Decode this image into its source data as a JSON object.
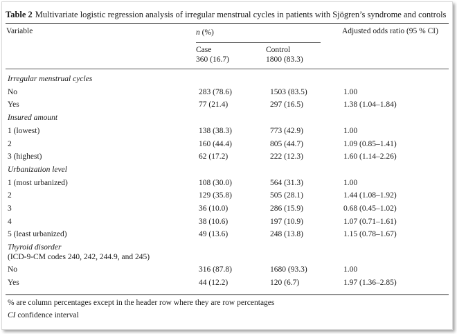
{
  "table": {
    "label": "Table 2",
    "caption": "Multivariate logistic regression analysis of irregular menstrual cycles in patients with Sjögren’s syndrome and controls",
    "headers": {
      "variable": "Variable",
      "n_pct": "n (%)",
      "or": "Adjusted odds ratio (95 % CI)",
      "case_label": "Case",
      "case_n": "360 (16.7)",
      "control_label": "Control",
      "control_n": "1800 (83.3)"
    },
    "rows": [
      {
        "type": "section",
        "label": "Irregular menstrual cycles"
      },
      {
        "type": "data",
        "label": "No",
        "case": "283 (78.6)",
        "control": "1503 (83.5)",
        "or": "1.00"
      },
      {
        "type": "data",
        "label": "Yes",
        "case": "77 (21.4)",
        "control": "297 (16.5)",
        "or": "1.38 (1.04–1.84)"
      },
      {
        "type": "section",
        "label": "Insured amount"
      },
      {
        "type": "data",
        "label": "1 (lowest)",
        "case": "138 (38.3)",
        "control": "773 (42.9)",
        "or": "1.00"
      },
      {
        "type": "data",
        "label": "2",
        "case": "160 (44.4)",
        "control": "805 (44.7)",
        "or": "1.09 (0.85–1.41)"
      },
      {
        "type": "data",
        "label": "3 (highest)",
        "case": "62 (17.2)",
        "control": "222 (12.3)",
        "or": "1.60 (1.14–2.26)"
      },
      {
        "type": "section",
        "label": "Urbanization level"
      },
      {
        "type": "data",
        "label": "1 (most urbanized)",
        "case": "108 (30.0)",
        "control": "564 (31.3)",
        "or": "1.00"
      },
      {
        "type": "data",
        "label": "2",
        "case": "129 (35.8)",
        "control": "505 (28.1)",
        "or": "1.44 (1.08–1.92)"
      },
      {
        "type": "data",
        "label": "3",
        "case": "36 (10.0)",
        "control": "286 (15.9)",
        "or": "0.68 (0.45–1.02)"
      },
      {
        "type": "data",
        "label": "4",
        "case": "38 (10.6)",
        "control": "197 (10.9)",
        "or": "1.07 (0.71–1.61)"
      },
      {
        "type": "data",
        "label": "5 (least urbanized)",
        "case": "49 (13.6)",
        "control": "248 (13.8)",
        "or": "1.15 (0.78–1.67)"
      },
      {
        "type": "section",
        "label": "Thyroid disorder"
      },
      {
        "type": "note",
        "label": "(ICD-9-CM codes 240, 242, 244.9, and 245)"
      },
      {
        "type": "data",
        "label": "No",
        "case": "316 (87.8)",
        "control": "1680 (93.3)",
        "or": "1.00"
      },
      {
        "type": "data",
        "label": "Yes",
        "case": "44 (12.2)",
        "control": "120 (6.7)",
        "or": "1.97 (1.36–2.85)"
      }
    ],
    "footnotes": {
      "pct_note": "% are column percentages except in the header row where they are row percentages",
      "ci_abbr": "CI",
      "ci_text": "confidence interval"
    }
  }
}
